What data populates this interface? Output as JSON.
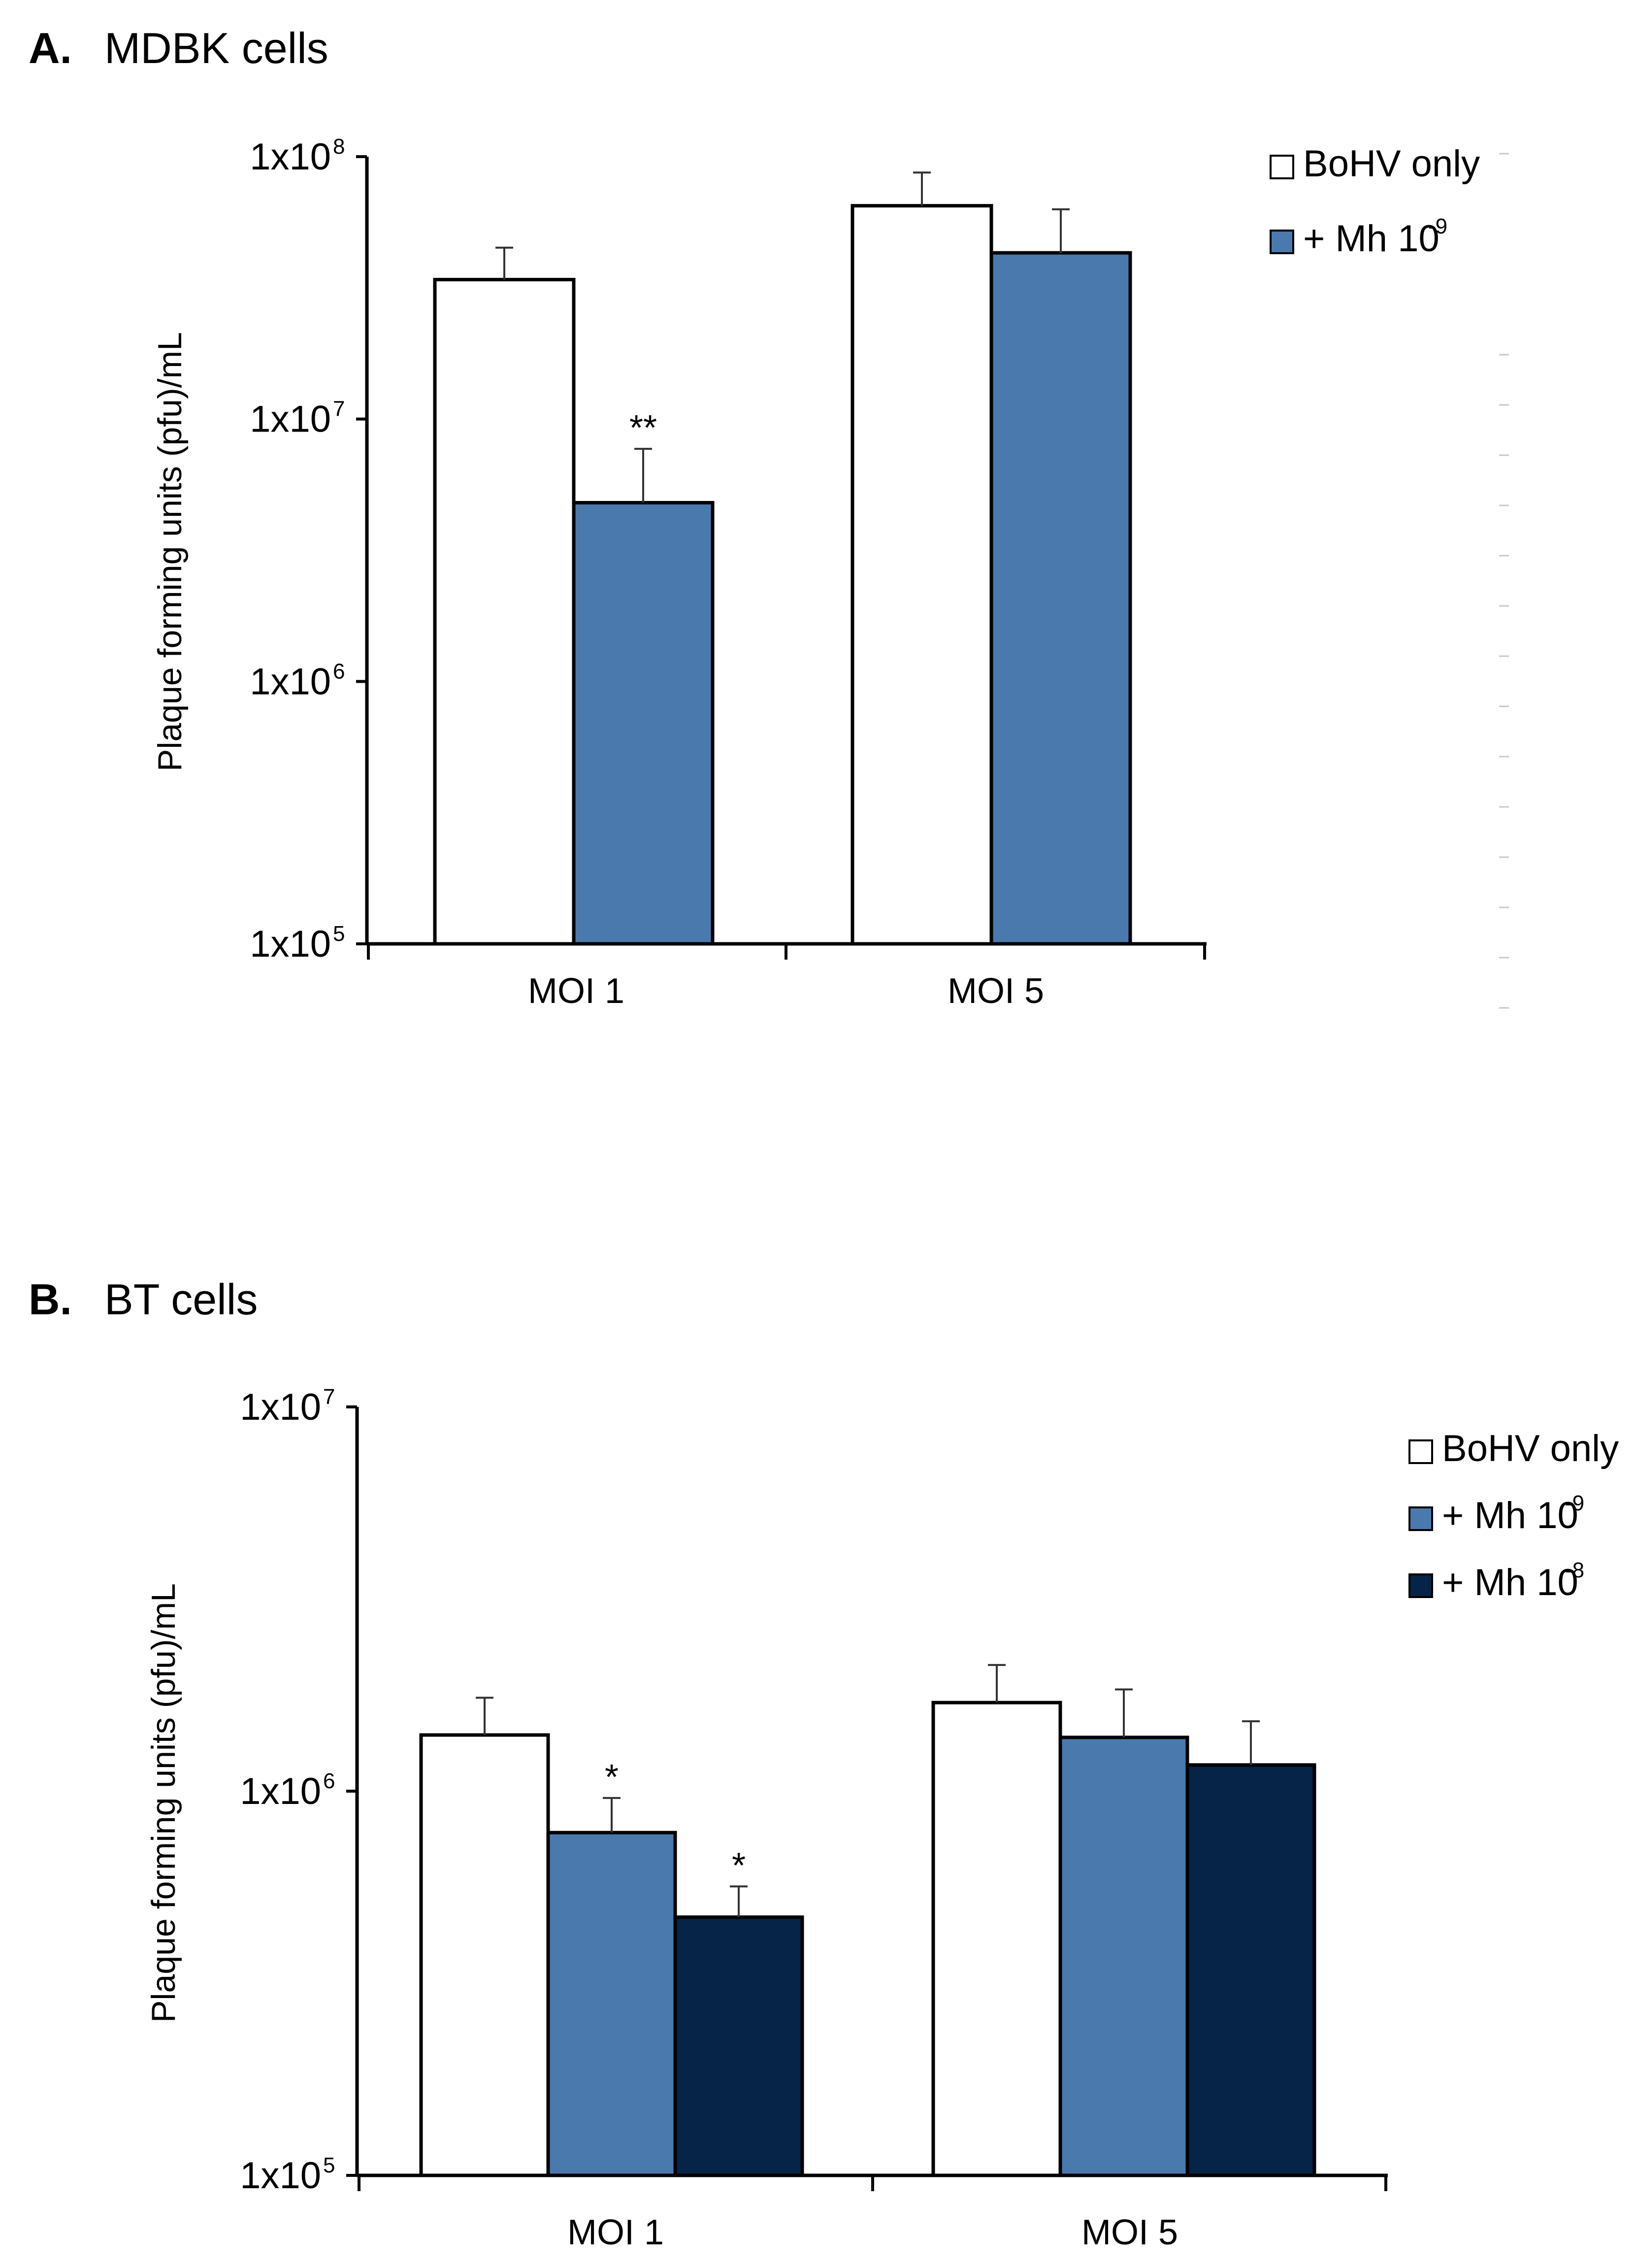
{
  "figure": {
    "colors": {
      "bohv_only": "#ffffff",
      "mh_1e9": "#4a7aad",
      "mh_1e8": "#052447",
      "outline": "#000000",
      "error_bar": "#333333"
    }
  },
  "chart_data": [
    {
      "type": "bar",
      "panel_letter": "A.",
      "title": "MDBK cells",
      "ylabel": "Plaque forming units (pfu)/mL",
      "xlabel": "",
      "yscale": "log",
      "ylim": [
        100000,
        100000000
      ],
      "yticks": [
        {
          "value": 100000,
          "base": "1x10",
          "exp": "5"
        },
        {
          "value": 1000000,
          "base": "1x10",
          "exp": "6"
        },
        {
          "value": 10000000,
          "base": "1x10",
          "exp": "7"
        },
        {
          "value": 100000000,
          "base": "1x10",
          "exp": "8"
        }
      ],
      "categories": [
        "MOI 1",
        "MOI 5"
      ],
      "series": [
        {
          "name": "BoHV only",
          "legend_base": "BoHV only",
          "legend_exp": "",
          "color": "#ffffff",
          "values": [
            34000000,
            65000000
          ],
          "errors": [
            11000000,
            22000000
          ],
          "significance": [
            "",
            ""
          ]
        },
        {
          "name": "+ Mh 10-9",
          "legend_base": "+ Mh 10",
          "legend_exp": "-9",
          "color": "#4a7aad",
          "values": [
            4800000,
            43000000
          ],
          "errors": [
            2900000,
            20000000
          ],
          "significance": [
            "**",
            ""
          ]
        }
      ],
      "legend_position": "top-right"
    },
    {
      "type": "bar",
      "panel_letter": "B.",
      "title": "BT cells",
      "ylabel": "Plaque forming units (pfu)/mL",
      "xlabel": "",
      "yscale": "log",
      "ylim": [
        100000,
        10000000
      ],
      "yticks": [
        {
          "value": 100000,
          "base": "1x10",
          "exp": "5"
        },
        {
          "value": 1000000,
          "base": "1x10",
          "exp": "6"
        },
        {
          "value": 10000000,
          "base": "1x10",
          "exp": "7"
        }
      ],
      "categories": [
        "MOI 1",
        "MOI 5"
      ],
      "series": [
        {
          "name": "BoHV only",
          "legend_base": "BoHV only",
          "legend_exp": "",
          "color": "#ffffff",
          "values": [
            1400000,
            1700000
          ],
          "errors": [
            350000,
            430000
          ],
          "significance": [
            "",
            ""
          ]
        },
        {
          "name": "+ Mh 10-9",
          "legend_base": "+ Mh 10",
          "legend_exp": "-9",
          "color": "#4a7aad",
          "values": [
            780000,
            1380000
          ],
          "errors": [
            180000,
            460000
          ],
          "significance": [
            "*",
            ""
          ]
        },
        {
          "name": "+ Mh 10-8",
          "legend_base": "+ Mh 10",
          "legend_exp": "-8",
          "color": "#052447",
          "values": [
            470000,
            1170000
          ],
          "errors": [
            95000,
            350000
          ],
          "significance": [
            "*",
            ""
          ]
        }
      ],
      "legend_position": "top-right"
    }
  ]
}
